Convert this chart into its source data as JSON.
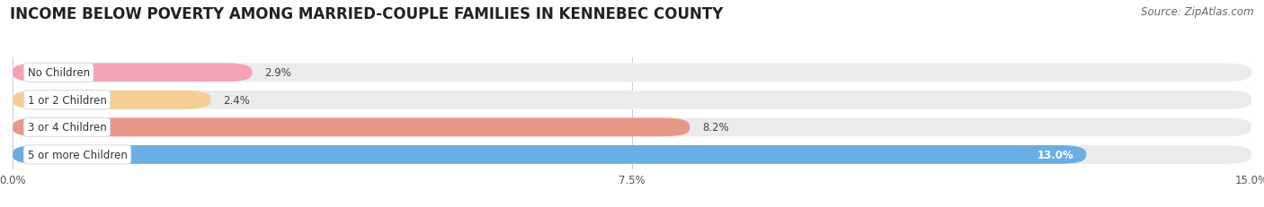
{
  "title": "INCOME BELOW POVERTY AMONG MARRIED-COUPLE FAMILIES IN KENNEBEC COUNTY",
  "source": "Source: ZipAtlas.com",
  "categories": [
    "No Children",
    "1 or 2 Children",
    "3 or 4 Children",
    "5 or more Children"
  ],
  "values": [
    2.9,
    2.4,
    8.2,
    13.0
  ],
  "bar_colors": [
    "#f4a0b5",
    "#f5ce94",
    "#e89888",
    "#6aaee6"
  ],
  "label_colors": [
    "#333333",
    "#333333",
    "#333333",
    "#ffffff"
  ],
  "xlim": [
    0,
    15.0
  ],
  "xticks": [
    0.0,
    7.5,
    15.0
  ],
  "xticklabels": [
    "0.0%",
    "7.5%",
    "15.0%"
  ],
  "title_fontsize": 12,
  "source_fontsize": 8.5,
  "bar_height": 0.68,
  "background_color": "#ffffff",
  "bar_bg_color": "#ebebeb"
}
